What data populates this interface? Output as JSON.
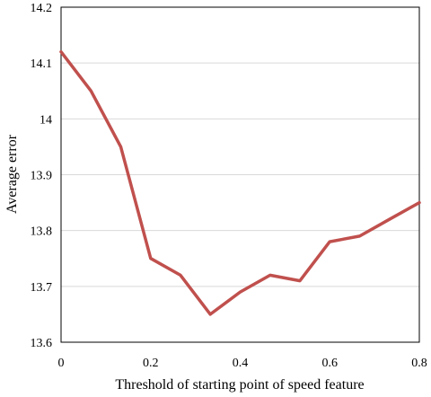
{
  "chart_data": {
    "type": "line",
    "xlabel": "Threshold of starting point of speed feature",
    "ylabel": "Average error",
    "xlim": [
      0,
      0.8
    ],
    "ylim": [
      13.6,
      14.2
    ],
    "x_ticks": [
      "0",
      "0.2",
      "0.4",
      "0.6",
      "0.8"
    ],
    "y_ticks": [
      "13.6",
      "13.7",
      "13.8",
      "13.9",
      "14",
      "14.1",
      "14.2"
    ],
    "grid": "horizontal",
    "legend": "none",
    "series": [
      {
        "color": "#c0504d",
        "x": [
          0,
          0.0667,
          0.1333,
          0.2,
          0.2667,
          0.3333,
          0.4,
          0.4667,
          0.5333,
          0.6,
          0.6667,
          0.7333,
          0.8
        ],
        "y": [
          14.12,
          14.05,
          13.95,
          13.75,
          13.72,
          13.65,
          13.69,
          13.72,
          13.71,
          13.78,
          13.79,
          13.82,
          13.85
        ]
      }
    ]
  }
}
